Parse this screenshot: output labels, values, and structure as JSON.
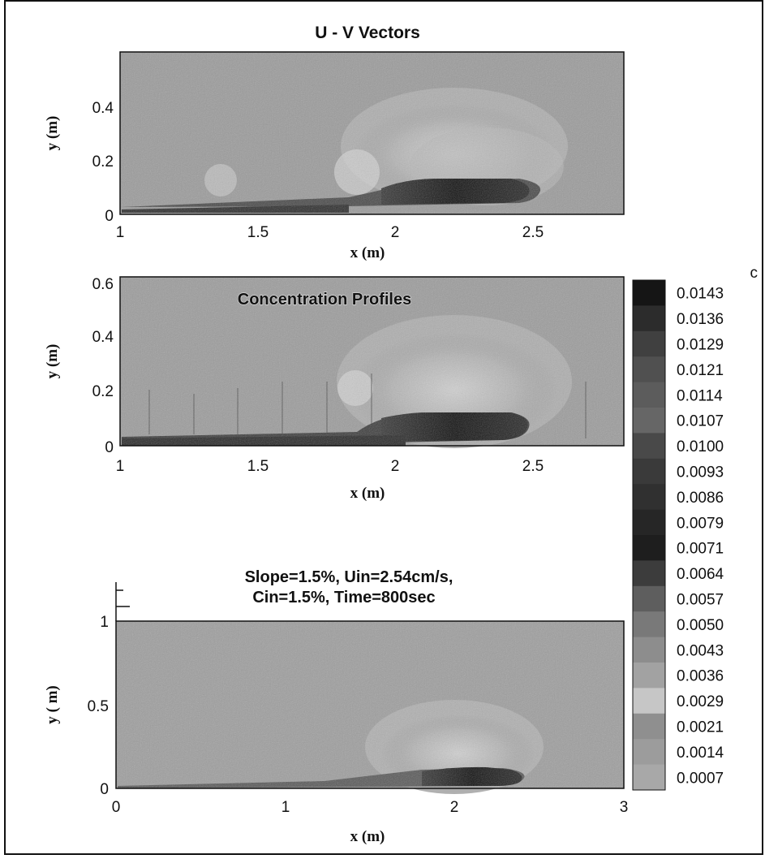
{
  "chart_data": [
    {
      "type": "heatmap",
      "title": "U - V Vectors",
      "xlabel": "x (m)",
      "ylabel": "y (m)",
      "xlim": [
        1,
        2.8
      ],
      "ylim": [
        0,
        0.58
      ],
      "xticks": [
        "1",
        "1.5",
        "2",
        "2.5"
      ],
      "yticks": [
        "0",
        "0.2",
        "0.4"
      ]
    },
    {
      "type": "heatmap",
      "title": "Concentration Profiles",
      "xlabel": "x (m)",
      "ylabel": "y (m)",
      "xlim": [
        1,
        2.8
      ],
      "ylim": [
        0,
        0.62
      ],
      "xticks": [
        "1",
        "1.5",
        "2",
        "2.5"
      ],
      "yticks": [
        "0",
        "0.2",
        "0.4",
        "0.6"
      ]
    },
    {
      "type": "heatmap",
      "title_lines": [
        "Slope=1.5%,   Uin=2.54cm/s,",
        "Cin=1.5%,    Time=800sec"
      ],
      "xlabel": "x (m)",
      "ylabel": "y ( m)",
      "xlim": [
        0,
        3
      ],
      "ylim": [
        0,
        1
      ],
      "xticks": [
        "0",
        "1",
        "2",
        "3"
      ],
      "yticks": [
        "0",
        "0.5",
        "1"
      ]
    }
  ],
  "colorbar": {
    "label": "c",
    "levels": [
      "0.0143",
      "0.0136",
      "0.0129",
      "0.0121",
      "0.0114",
      "0.0107",
      "0.0100",
      "0.0093",
      "0.0086",
      "0.0079",
      "0.0071",
      "0.0064",
      "0.0057",
      "0.0050",
      "0.0043",
      "0.0036",
      "0.0029",
      "0.0021",
      "0.0014",
      "0.0007"
    ],
    "colors": [
      "#151515",
      "#2c2c2c",
      "#404040",
      "#505050",
      "#5c5c5c",
      "#666666",
      "#494949",
      "#3a3a3a",
      "#303030",
      "#262626",
      "#1e1e1e",
      "#3c3c3c",
      "#5e5e5e",
      "#797979",
      "#8d8d8d",
      "#a2a2a2",
      "#c6c6c6",
      "#8f8f8f",
      "#9c9c9c",
      "#a8a8a8"
    ]
  },
  "colors": {
    "field_background": "#9a9a9a",
    "frame": "#111111"
  }
}
